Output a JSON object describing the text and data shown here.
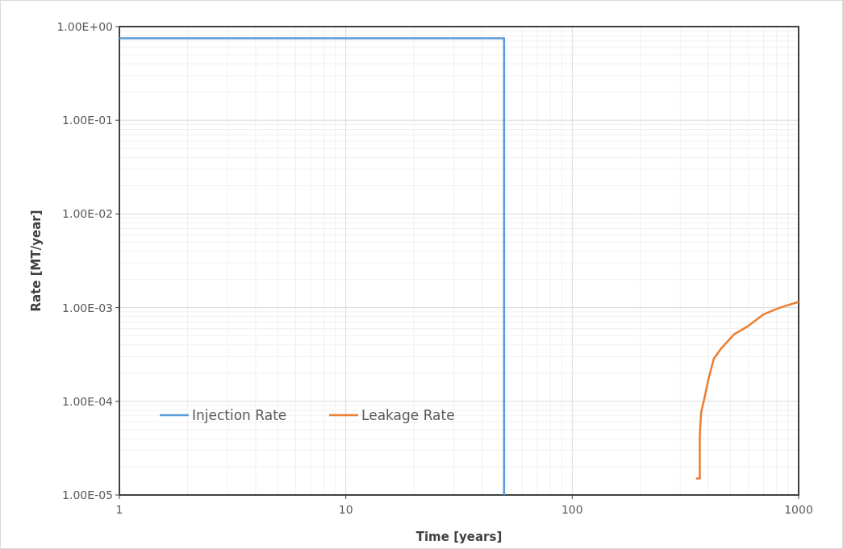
{
  "chart_data": {
    "type": "line",
    "xlabel": "Time [years]",
    "ylabel": "Rate [MT/year]",
    "log": "xy",
    "grid": true,
    "legend": "bottom left",
    "line_style": "solid",
    "marker": "none",
    "xlim": [
      1,
      1000
    ],
    "xticks": [
      1,
      10,
      100,
      1000
    ],
    "ylim": [
      1e-05,
      1
    ],
    "yticks": [
      {
        "value": 1,
        "label": "1.00E+00"
      },
      {
        "value": 0.1,
        "label": "1.00E-01"
      },
      {
        "value": 0.01,
        "label": "1.00E-02"
      },
      {
        "value": 0.001,
        "label": "1.00E-03"
      },
      {
        "value": 0.0001,
        "label": "1.00E-04"
      },
      {
        "value": 1e-05,
        "label": "1.00E-05"
      }
    ],
    "series": [
      {
        "name": "Injection Rate",
        "color": "#5b9bd5",
        "x": [
          1,
          50,
          50
        ],
        "values": [
          0.75,
          0.75,
          1e-05
        ]
      },
      {
        "name": "Leakage Rate",
        "color": "#ed7d31",
        "x": [
          352,
          366,
          366,
          371,
          383,
          400,
          422,
          452,
          519,
          595,
          701,
          826,
          986,
          1000
        ],
        "values": [
          1.5e-05,
          1.5e-05,
          4.3e-05,
          7.6e-05,
          0.000106,
          0.000174,
          0.000285,
          0.00036,
          0.00052,
          0.00063,
          0.00085,
          0.001,
          0.00114,
          0.00115
        ]
      }
    ]
  }
}
